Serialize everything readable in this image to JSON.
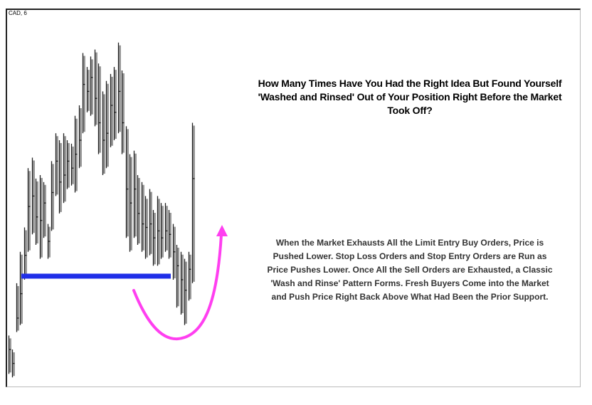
{
  "symbol": "CAD, 6",
  "headline": "How Many Times Have You Had the Right Idea But Found Yourself 'Washed and Rinsed' Out of Your Position Right Before the Market Took Off?",
  "body": "When the Market Exhausts All the Limit Entry Buy Orders, Price is Pushed Lower. Stop Loss Orders and Stop Entry Orders are Run as Price Pushes Lower. Once All the Sell Orders are Exhausted, a Classic 'Wash and Rinse' Pattern Forms. Fresh Buyers Come into the Market and Push Price Right Back Above What Had Been the Prior Support.",
  "colors": {
    "bar": "#222222",
    "bar_shadow": "#999999",
    "support_line": "#1f2ee8",
    "arrow": "#ff3ff0"
  },
  "chart_data": {
    "type": "ohlc",
    "title": "CAD, 6",
    "xlabel": "",
    "ylabel": "",
    "grid": false,
    "note": "Price values are relative (no price axis printed); estimated on a 0-100 scale.",
    "ylim": [
      0,
      100
    ],
    "bars": [
      {
        "high": 14,
        "low": 3,
        "close": 10
      },
      {
        "high": 10,
        "low": 2,
        "close": 6
      },
      {
        "high": 29,
        "low": 15,
        "close": 19
      },
      {
        "high": 38,
        "low": 17,
        "close": 26
      },
      {
        "high": 45,
        "low": 30,
        "close": 37
      },
      {
        "high": 62,
        "low": 38,
        "close": 51
      },
      {
        "high": 65,
        "low": 43,
        "close": 54
      },
      {
        "high": 59,
        "low": 40,
        "close": 48
      },
      {
        "high": 60,
        "low": 36,
        "close": 47
      },
      {
        "high": 58,
        "low": 42,
        "close": 52
      },
      {
        "high": 46,
        "low": 36,
        "close": 41
      },
      {
        "high": 64,
        "low": 44,
        "close": 55
      },
      {
        "high": 72,
        "low": 54,
        "close": 64
      },
      {
        "high": 70,
        "low": 49,
        "close": 58
      },
      {
        "high": 72,
        "low": 52,
        "close": 60
      },
      {
        "high": 70,
        "low": 56,
        "close": 64
      },
      {
        "high": 69,
        "low": 57,
        "close": 62
      },
      {
        "high": 77,
        "low": 55,
        "close": 66
      },
      {
        "high": 80,
        "low": 62,
        "close": 70
      },
      {
        "high": 95,
        "low": 72,
        "close": 86
      },
      {
        "high": 91,
        "low": 78,
        "close": 84
      },
      {
        "high": 94,
        "low": 77,
        "close": 88
      },
      {
        "high": 96,
        "low": 74,
        "close": 82
      },
      {
        "high": 92,
        "low": 66,
        "close": 75
      },
      {
        "high": 84,
        "low": 60,
        "close": 70
      },
      {
        "high": 87,
        "low": 62,
        "close": 72
      },
      {
        "high": 89,
        "low": 68,
        "close": 80
      },
      {
        "high": 91,
        "low": 70,
        "close": 78
      },
      {
        "high": 98,
        "low": 72,
        "close": 84
      },
      {
        "high": 90,
        "low": 66,
        "close": 75
      },
      {
        "high": 74,
        "low": 42,
        "close": 56
      },
      {
        "high": 66,
        "low": 38,
        "close": 52
      },
      {
        "high": 67,
        "low": 42,
        "close": 56
      },
      {
        "high": 60,
        "low": 40,
        "close": 49
      },
      {
        "high": 58,
        "low": 38,
        "close": 46
      },
      {
        "high": 54,
        "low": 36,
        "close": 45
      },
      {
        "high": 56,
        "low": 37,
        "close": 46
      },
      {
        "high": 50,
        "low": 34,
        "close": 42
      },
      {
        "high": 54,
        "low": 34,
        "close": 44
      },
      {
        "high": 52,
        "low": 36,
        "close": 42
      },
      {
        "high": 52,
        "low": 38,
        "close": 44
      },
      {
        "high": 50,
        "low": 36,
        "close": 43
      },
      {
        "high": 46,
        "low": 30,
        "close": 38
      },
      {
        "high": 40,
        "low": 22,
        "close": 34
      },
      {
        "high": 38,
        "low": 20,
        "close": 30
      },
      {
        "high": 36,
        "low": 17,
        "close": 27
      },
      {
        "high": 38,
        "low": 24,
        "close": 33
      },
      {
        "high": 75,
        "low": 29,
        "close": 59
      }
    ],
    "support_level": 35,
    "support_span_bars": [
      5,
      45
    ]
  }
}
